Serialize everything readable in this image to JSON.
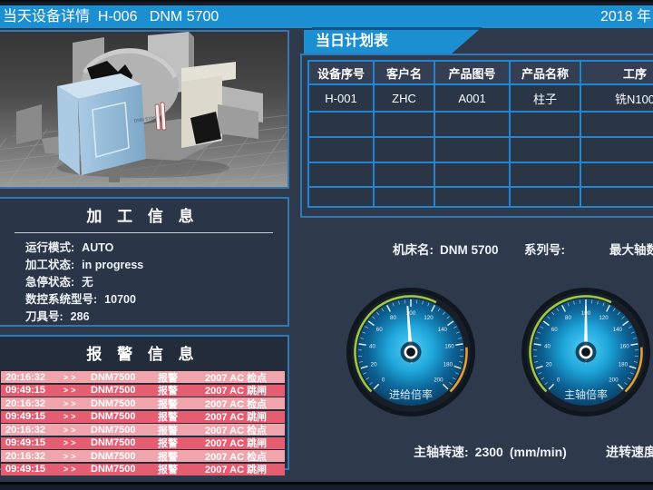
{
  "title_bar": {
    "left_text": "当天设备详情  H-006   DNM 5700",
    "right_text": "2018 年"
  },
  "machine_view": {
    "badge": "DNM 5700"
  },
  "info_panel": {
    "title": "加 工 信 息",
    "fields": [
      {
        "label": "运行模式:",
        "value": "AUTO"
      },
      {
        "label": "加工状态:",
        "value": "in progress"
      },
      {
        "label": "急停状态:",
        "value": "无"
      },
      {
        "label": "数控系统型号:",
        "value": "10700"
      },
      {
        "label": "刀具号:",
        "value": "286"
      }
    ]
  },
  "alarm_panel": {
    "title": "报 警 信 息",
    "rows": [
      {
        "time": "20:16:32",
        "arrow": ">>",
        "device": "DNM7500",
        "type": "报警",
        "message": "2007  AC 检点"
      },
      {
        "time": "09:49:15",
        "arrow": ">>",
        "device": "DNM7500",
        "type": "报警",
        "message": "2007  AC 跳闸"
      },
      {
        "time": "20:16:32",
        "arrow": ">>",
        "device": "DNM7500",
        "type": "报警",
        "message": "2007  AC 检点"
      },
      {
        "time": "09:49:15",
        "arrow": ">>",
        "device": "DNM7500",
        "type": "报警",
        "message": "2007  AC 跳闸"
      },
      {
        "time": "20:16:32",
        "arrow": ">>",
        "device": "DNM7500",
        "type": "报警",
        "message": "2007  AC 检点"
      },
      {
        "time": "09:49:15",
        "arrow": ">>",
        "device": "DNM7500",
        "type": "报警",
        "message": "2007  AC 跳闸"
      },
      {
        "time": "20:16:32",
        "arrow": ">>",
        "device": "DNM7500",
        "type": "报警",
        "message": "2007  AC 检点"
      },
      {
        "time": "09:49:15",
        "arrow": ">>",
        "device": "DNM7500",
        "type": "报警",
        "message": "2007  AC 跳闸"
      }
    ]
  },
  "plan_panel": {
    "title": "当日计划表",
    "columns": [
      "设备序号",
      "客户名",
      "产品图号",
      "产品名称",
      "工序"
    ],
    "rows": [
      [
        "H-001",
        "ZHC",
        "A001",
        "柱子",
        "铣N100"
      ],
      [
        "",
        "",
        "",
        "",
        ""
      ],
      [
        "",
        "",
        "",
        "",
        ""
      ],
      [
        "",
        "",
        "",
        "",
        ""
      ],
      [
        "",
        "",
        "",
        "",
        ""
      ]
    ]
  },
  "machine_line": {
    "name_label": "机床名:",
    "name_value": "DNM 5700",
    "serial_label": "系列号:",
    "max_axes_label": "最大轴数"
  },
  "gauges": [
    {
      "label": "进给倍率",
      "min": 0,
      "max": 200,
      "major_step": 20,
      "minor_step": 5,
      "value": 97,
      "bands": [
        {
          "from": 0,
          "to": 120,
          "color": "#9cc843"
        },
        {
          "from": 163,
          "to": 200,
          "color": "#dda13c"
        }
      ]
    },
    {
      "label": "主轴倍率",
      "min": 0,
      "max": 200,
      "major_step": 20,
      "minor_step": 5,
      "value": 100,
      "bands": [
        {
          "from": 0,
          "to": 120,
          "color": "#9cc843"
        },
        {
          "from": 163,
          "to": 200,
          "color": "#dda13c"
        }
      ]
    }
  ],
  "bottom_line": {
    "spindle_label": "主轴转速:",
    "spindle_value": "2300",
    "spindle_unit": "(mm/min)",
    "feed_label": "进转速度"
  },
  "colors": {
    "accent_blue": "#1b8fd2",
    "panel_border": "#2f79ba",
    "table_line": "#1f86d6",
    "alarm_light": "#f0a5ad",
    "alarm_dark": "#e65d72",
    "page_bg": "#2e3a4b",
    "panel_bg": "#2a3547",
    "gauge_face_center": "#55cff5",
    "gauge_face_edge": "#083d63"
  }
}
